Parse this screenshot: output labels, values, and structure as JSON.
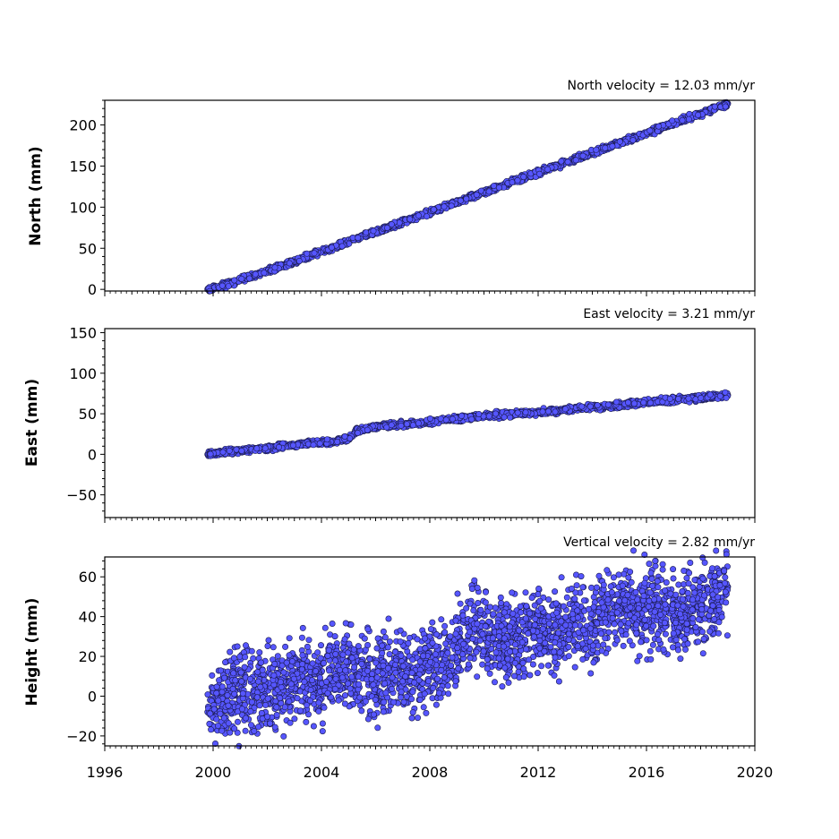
{
  "chart_data": [
    {
      "type": "scatter",
      "ylabel": "North (mm)",
      "annotation": "North velocity = 12.03 mm/yr",
      "xlim": [
        1996,
        2020
      ],
      "ylim": [
        -2,
        230
      ],
      "yticks": [
        0,
        50,
        100,
        150,
        200
      ],
      "ytick_labels": [
        "0",
        "50",
        "100",
        "150",
        "200"
      ],
      "x": [
        1999.8,
        2000.5,
        2001.5,
        2002.5,
        2003.5,
        2004.5,
        2005.5,
        2006.5,
        2007.5,
        2008.5,
        2009.5,
        2010.5,
        2011.5,
        2012.5,
        2013.5,
        2014.5,
        2015.5,
        2016.5,
        2017.5,
        2018.5,
        2019.0
      ],
      "y": [
        0,
        6,
        17,
        28,
        40,
        52,
        64,
        76,
        88,
        100,
        112,
        124,
        136,
        148,
        160,
        172,
        184,
        196,
        208,
        220,
        226
      ],
      "scatter_mm": 1.5
    },
    {
      "type": "scatter",
      "ylabel": "East (mm)",
      "annotation": "East velocity = 3.21 mm/yr",
      "xlim": [
        1996,
        2020
      ],
      "ylim": [
        -78,
        155
      ],
      "yticks": [
        -50,
        0,
        50,
        100,
        150
      ],
      "ytick_labels": [
        "−50",
        "0",
        "50",
        "100",
        "150"
      ],
      "x": [
        1999.8,
        2000.5,
        2001.5,
        2002.5,
        2003.5,
        2004.5,
        2005.0,
        2005.3,
        2006.0,
        2007.0,
        2008.0,
        2009.0,
        2010.0,
        2011.0,
        2012.0,
        2013.0,
        2014.0,
        2015.0,
        2016.0,
        2017.0,
        2018.0,
        2019.0
      ],
      "y": [
        0,
        3,
        6,
        10,
        13,
        16,
        19,
        29,
        34,
        37,
        40,
        44,
        47,
        50,
        52,
        55,
        58,
        61,
        64,
        67,
        70,
        73
      ],
      "scatter_mm": 1.5
    },
    {
      "type": "scatter",
      "ylabel": "Height (mm)",
      "annotation": "Vertical velocity = 2.82 mm/yr",
      "xlim": [
        1996,
        2020
      ],
      "ylim": [
        -25,
        70
      ],
      "yticks": [
        -20,
        0,
        20,
        40,
        60
      ],
      "ytick_labels": [
        "−20",
        "0",
        "20",
        "40",
        "60"
      ],
      "xticks": [
        1996,
        2000,
        2004,
        2008,
        2012,
        2016,
        2020
      ],
      "xtick_labels": [
        "1996",
        "2000",
        "2004",
        "2008",
        "2012",
        "2016",
        "2020"
      ],
      "x": [
        1999.8,
        2000.2,
        2000.8,
        2001.5,
        2002.2,
        2003.0,
        2003.8,
        2004.5,
        2005.2,
        2006.0,
        2006.8,
        2007.5,
        2008.2,
        2009.0,
        2009.6,
        2010.3,
        2011.0,
        2011.7,
        2012.4,
        2013.2,
        2014.0,
        2014.8,
        2015.5,
        2016.2,
        2017.0,
        2017.7,
        2018.4,
        2019.0
      ],
      "y": [
        -8,
        -2,
        3,
        0,
        5,
        8,
        6,
        11,
        13,
        7,
        13,
        10,
        17,
        24,
        35,
        30,
        27,
        33,
        31,
        38,
        35,
        45,
        40,
        46,
        40,
        43,
        48,
        55
      ],
      "scatter_mm": 10
    }
  ]
}
